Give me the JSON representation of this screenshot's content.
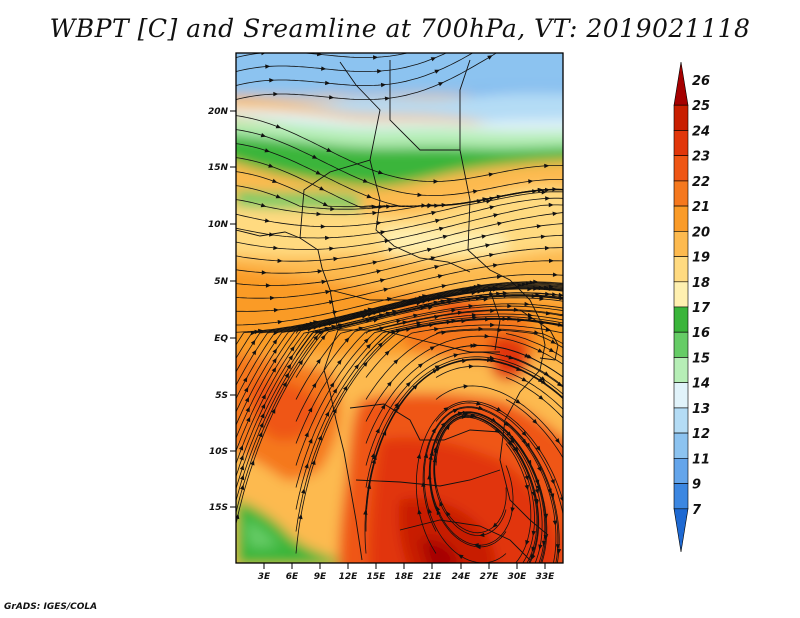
{
  "title": "WBPT [C] and Sreamline at 700hPa, VT: 2019021118",
  "credit": "GrADS: IGES/COLA",
  "map": {
    "lat_labels": [
      "20N",
      "15N",
      "10N",
      "5N",
      "EQ",
      "5S",
      "10S",
      "15S"
    ],
    "lon_labels": [
      "3E",
      "6E",
      "9E",
      "12E",
      "15E",
      "18E",
      "21E",
      "24E",
      "27E",
      "30E",
      "33E"
    ]
  },
  "colorbar": {
    "levels": [
      "26",
      "25",
      "24",
      "23",
      "22",
      "21",
      "20",
      "19",
      "18",
      "17",
      "16",
      "15",
      "14",
      "13",
      "12",
      "11",
      "9",
      "7"
    ],
    "colors": [
      "#a50000",
      "#c81e00",
      "#e1360a",
      "#ef5614",
      "#f5781e",
      "#fa9b28",
      "#fdba4f",
      "#ffda80",
      "#fff0b0",
      "#3ab53a",
      "#66cc66",
      "#b6eeb6",
      "#e1f3fa",
      "#b4dcf5",
      "#8cc3f0",
      "#64a5eb",
      "#3c87e1",
      "#1e69d2"
    ]
  },
  "colors": {
    "frame": "#000000",
    "coast": "#111111",
    "stream": "#111111"
  }
}
